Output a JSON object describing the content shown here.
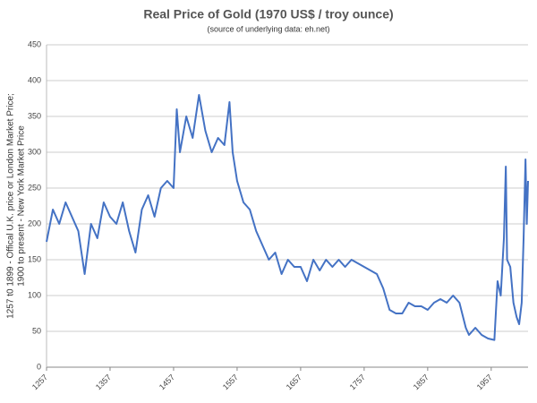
{
  "chart_data": {
    "type": "line",
    "title": "Real Price of Gold (1970 US$ / troy ounce)",
    "subtitle": "(source of underlying data: eh.net)",
    "ylabel": [
      "1257 t0 1899 - Offical U.K. price or London Market Price;",
      "1900 to present - New York Market Price"
    ],
    "x": [
      1257,
      1267,
      1277,
      1287,
      1297,
      1307,
      1317,
      1327,
      1337,
      1347,
      1357,
      1367,
      1377,
      1387,
      1397,
      1407,
      1417,
      1427,
      1437,
      1447,
      1457,
      1462,
      1467,
      1477,
      1487,
      1497,
      1507,
      1517,
      1527,
      1537,
      1545,
      1550,
      1557,
      1567,
      1577,
      1587,
      1597,
      1607,
      1617,
      1627,
      1637,
      1647,
      1657,
      1667,
      1677,
      1687,
      1697,
      1707,
      1717,
      1727,
      1737,
      1747,
      1757,
      1767,
      1777,
      1787,
      1797,
      1807,
      1817,
      1827,
      1837,
      1847,
      1857,
      1867,
      1877,
      1887,
      1897,
      1907,
      1917,
      1922,
      1932,
      1942,
      1952,
      1962,
      1967,
      1972,
      1977,
      1980,
      1982,
      1987,
      1992,
      1997,
      2001,
      2005,
      2008,
      2011,
      2013,
      2015
    ],
    "series": [
      {
        "name": "Real Price of Gold",
        "color": "#4472c4",
        "values": [
          175,
          220,
          200,
          230,
          210,
          190,
          130,
          200,
          180,
          230,
          210,
          200,
          230,
          190,
          160,
          220,
          240,
          210,
          250,
          260,
          250,
          360,
          300,
          350,
          320,
          380,
          330,
          300,
          320,
          310,
          370,
          300,
          260,
          230,
          220,
          190,
          170,
          150,
          160,
          130,
          150,
          140,
          140,
          120,
          150,
          135,
          150,
          140,
          150,
          140,
          150,
          145,
          140,
          135,
          130,
          110,
          80,
          75,
          75,
          90,
          85,
          85,
          80,
          90,
          95,
          90,
          100,
          90,
          55,
          45,
          55,
          45,
          40,
          38,
          120,
          100,
          180,
          280,
          150,
          140,
          90,
          70,
          60,
          90,
          180,
          290,
          200,
          260
        ]
      }
    ],
    "xlim": [
      1257,
      2015
    ],
    "xticks": [
      1257,
      1357,
      1457,
      1557,
      1657,
      1757,
      1857,
      1957
    ],
    "ylim": [
      0,
      450
    ],
    "yticks": [
      0,
      50,
      100,
      150,
      200,
      250,
      300,
      350,
      400,
      450
    ],
    "grid": true
  }
}
